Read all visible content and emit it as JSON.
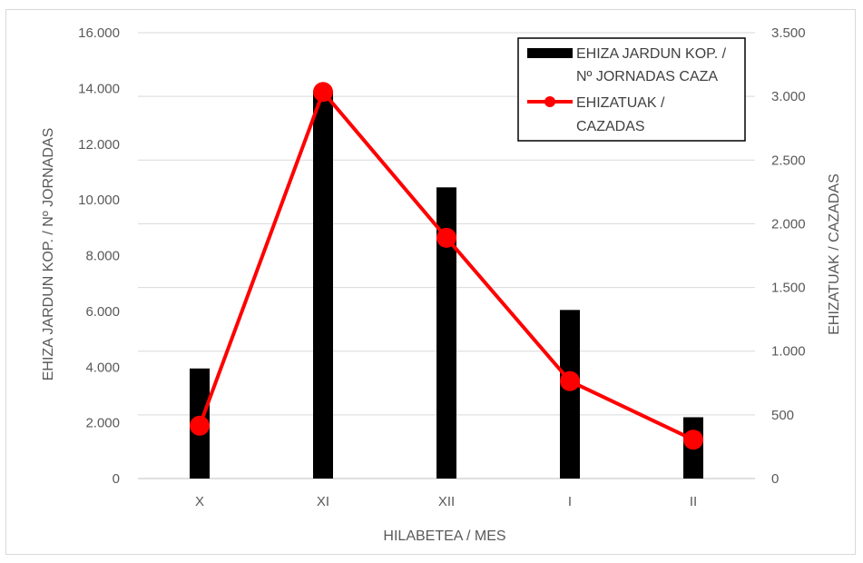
{
  "chart_data": {
    "type": "bar",
    "categories": [
      "X",
      "XI",
      "XII",
      "I",
      "II"
    ],
    "xlabel": "HILABETEA / MES",
    "ylabel": "EHIZA JARDUN KOP. / Nº JORNADAS",
    "y2label": "EHIZATUAK / CAZADAS",
    "ylim": [
      0,
      16000
    ],
    "y2lim": [
      0,
      3500
    ],
    "ytick_labels": [
      "0",
      "2.000",
      "4.000",
      "6.000",
      "8.000",
      "10.000",
      "12.000",
      "14.000",
      "16.000"
    ],
    "ytick_values": [
      0,
      2000,
      4000,
      6000,
      8000,
      10000,
      12000,
      14000,
      16000
    ],
    "y2tick_labels": [
      "0",
      "500",
      "1.000",
      "1.500",
      "2.000",
      "2.500",
      "3.000",
      "3.500"
    ],
    "y2tick_values": [
      0,
      500,
      1000,
      1500,
      2000,
      2500,
      3000,
      3500
    ],
    "grid": true,
    "legend_position": "top-right",
    "series": [
      {
        "name_lines": [
          "EHIZA JARDUN KOP. /",
          "Nº JORNADAS CAZA"
        ],
        "type": "bar",
        "axis": "left",
        "color": "#000000",
        "values": [
          3950,
          13900,
          10450,
          6050,
          2200
        ]
      },
      {
        "name_lines": [
          "EHIZATUAK /",
          "CAZADAS"
        ],
        "type": "line",
        "axis": "right",
        "color": "#ff0000",
        "values": [
          415,
          3035,
          1890,
          765,
          305
        ]
      }
    ]
  }
}
